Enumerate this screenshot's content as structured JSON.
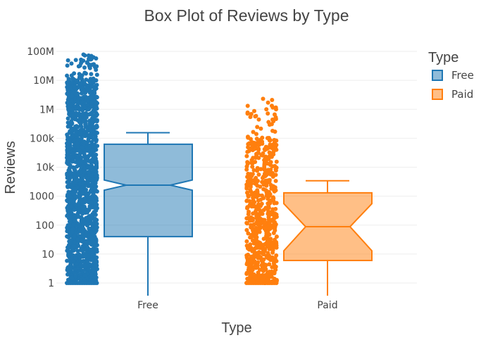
{
  "chart_data": {
    "type": "box",
    "title": "Box Plot of Reviews by Type",
    "xlabel": "Type",
    "ylabel": "Reviews",
    "y_scale": "log",
    "ylim": [
      1,
      100000000
    ],
    "y_ticks": [
      {
        "value": 1,
        "label": "1"
      },
      {
        "value": 10,
        "label": "10"
      },
      {
        "value": 100,
        "label": "100"
      },
      {
        "value": 1000,
        "label": "1000"
      },
      {
        "value": 10000,
        "label": "10k"
      },
      {
        "value": 100000,
        "label": "100k"
      },
      {
        "value": 1000000,
        "label": "1M"
      },
      {
        "value": 10000000,
        "label": "10M"
      },
      {
        "value": 100000000,
        "label": "100M"
      }
    ],
    "categories": [
      "Free",
      "Paid"
    ],
    "legend": {
      "title": "Type",
      "position": "top-right"
    },
    "series": [
      {
        "name": "Free",
        "color": "#1f77b4",
        "box": {
          "lower_fence": 0,
          "q1": 40,
          "median": 2400,
          "q3": 62000,
          "upper_fence": 155000,
          "notch_low": 1600,
          "notch_high": 3600
        },
        "points_range": [
          1,
          78000000
        ],
        "points_dense": [
          1,
          12000000
        ]
      },
      {
        "name": "Paid",
        "color": "#ff7f0e",
        "box": {
          "lower_fence": 0,
          "q1": 6,
          "median": 88,
          "q3": 1300,
          "upper_fence": 3400,
          "notch_low": 13,
          "notch_high": 550
        },
        "points_range": [
          1,
          2300000
        ],
        "points_dense": [
          1,
          120000
        ]
      }
    ]
  }
}
